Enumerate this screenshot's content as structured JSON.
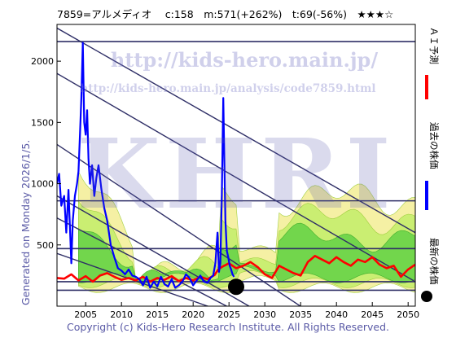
{
  "header": {
    "title": "7859=アルメディオ　 c:158　m:571(+262%)　t:69(-56%)　★★★☆"
  },
  "side_label": "Generated on Monday 2026/1/5.",
  "footer": "Copyright (c) Kids-Hero Research Institute. All Rights Reserved.",
  "watermark": {
    "url": "http://kids-hero.main.jp/",
    "url2": "http://kids-hero.main.jp/analysis/code7859.html",
    "logo": "KHRI"
  },
  "legend": [
    {
      "label": "ＡＩ予測",
      "color": "#ff0000",
      "kind": "line"
    },
    {
      "label": "過去の株価",
      "color": "#0000ff",
      "kind": "line"
    },
    {
      "label": "最新の株価",
      "color": "#000000",
      "kind": "dot"
    }
  ],
  "colors": {
    "ai_forecast": "#ff0000",
    "past_price": "#0000ff",
    "latest_dot": "#000000",
    "horizontal_lines": "#2e2e66",
    "trend_lines": "#2e2e66",
    "band_outer": "#f5f0a0",
    "band_mid": "#c8ee70",
    "band_inner": "#6ed54a"
  },
  "chart_data": {
    "type": "line",
    "title": "",
    "xlabel": "",
    "ylabel": "",
    "xlim": [
      2001,
      2051
    ],
    "ylim": [
      0,
      2300
    ],
    "x_ticks": [
      2005,
      2010,
      2015,
      2020,
      2025,
      2030,
      2035,
      2040,
      2045,
      2050
    ],
    "y_ticks": [
      500,
      1000,
      1500,
      2000
    ],
    "grid": false,
    "horizontal_levels": [
      2160,
      860,
      470,
      200,
      130
    ],
    "trend_lines": [
      {
        "x": [
          2001,
          2051
        ],
        "y": [
          2270,
          600
        ]
      },
      {
        "x": [
          2001,
          2051
        ],
        "y": [
          1900,
          200
        ]
      },
      {
        "x": [
          2001,
          2036
        ],
        "y": [
          1320,
          -40
        ]
      },
      {
        "x": [
          2001,
          2029
        ],
        "y": [
          900,
          -40
        ]
      },
      {
        "x": [
          2001,
          2026
        ],
        "y": [
          720,
          -40
        ]
      },
      {
        "x": [
          2001,
          2024
        ],
        "y": [
          430,
          -40
        ]
      }
    ],
    "series": [
      {
        "name": "過去の株価",
        "x": [
          2001,
          2001.3,
          2001.6,
          2002,
          2002.3,
          2002.6,
          2003,
          2003.2,
          2003.5,
          2003.8,
          2004,
          2004.2,
          2004.4,
          2004.6,
          2004.8,
          2005,
          2005.2,
          2005.4,
          2005.6,
          2005.9,
          2006.2,
          2006.5,
          2006.8,
          2007.2,
          2007.6,
          2008,
          2008.5,
          2009,
          2009.5,
          2010,
          2010.5,
          2011,
          2011.5,
          2012,
          2012.5,
          2013,
          2013.5,
          2014,
          2014.5,
          2015,
          2015.5,
          2016,
          2016.5,
          2017,
          2017.5,
          2018,
          2018.5,
          2019,
          2019.5,
          2020,
          2020.5,
          2021,
          2021.5,
          2022,
          2022.4,
          2022.8,
          2023.1,
          2023.4,
          2023.6,
          2023.8,
          2024,
          2024.1,
          2024.2,
          2024.35,
          2024.5,
          2024.7,
          2024.9,
          2025.1,
          2025.3,
          2025.5,
          2025.7
        ],
        "y": [
          1000,
          1080,
          820,
          900,
          600,
          950,
          350,
          700,
          900,
          1000,
          1100,
          1400,
          1700,
          2150,
          1500,
          1400,
          1600,
          1200,
          1000,
          1150,
          900,
          1050,
          1150,
          950,
          800,
          700,
          500,
          400,
          310,
          290,
          260,
          300,
          250,
          240,
          220,
          170,
          240,
          150,
          200,
          160,
          240,
          180,
          160,
          220,
          150,
          170,
          200,
          260,
          230,
          170,
          210,
          250,
          200,
          190,
          230,
          250,
          350,
          600,
          280,
          350,
          900,
          1300,
          1700,
          1200,
          700,
          450,
          400,
          330,
          300,
          260,
          240
        ]
      },
      {
        "name": "ＡＩ予測",
        "x": [
          2001,
          2002,
          2003,
          2004,
          2005,
          2006,
          2007,
          2008,
          2009,
          2010,
          2011,
          2012,
          2013,
          2014,
          2015,
          2016,
          2017,
          2018,
          2019,
          2020,
          2021,
          2022,
          2023,
          2023.5,
          2024,
          2025,
          2026,
          2027,
          2028,
          2029,
          2030,
          2031,
          2032,
          2033,
          2034,
          2035,
          2036,
          2037,
          2038,
          2039,
          2040,
          2041,
          2042,
          2043,
          2044,
          2045,
          2046,
          2047,
          2048,
          2049,
          2050,
          2051
        ],
        "y": [
          230,
          225,
          260,
          210,
          245,
          200,
          250,
          270,
          240,
          215,
          230,
          210,
          240,
          200,
          230,
          215,
          245,
          205,
          230,
          210,
          240,
          220,
          255,
          300,
          320,
          350,
          310,
          330,
          360,
          320,
          260,
          230,
          330,
          300,
          270,
          250,
          360,
          410,
          380,
          350,
          400,
          360,
          330,
          380,
          360,
          400,
          340,
          310,
          330,
          240,
          300,
          340
        ]
      },
      {
        "name": "最新の株価",
        "x": [
          2026
        ],
        "y": [
          158
        ]
      }
    ]
  }
}
